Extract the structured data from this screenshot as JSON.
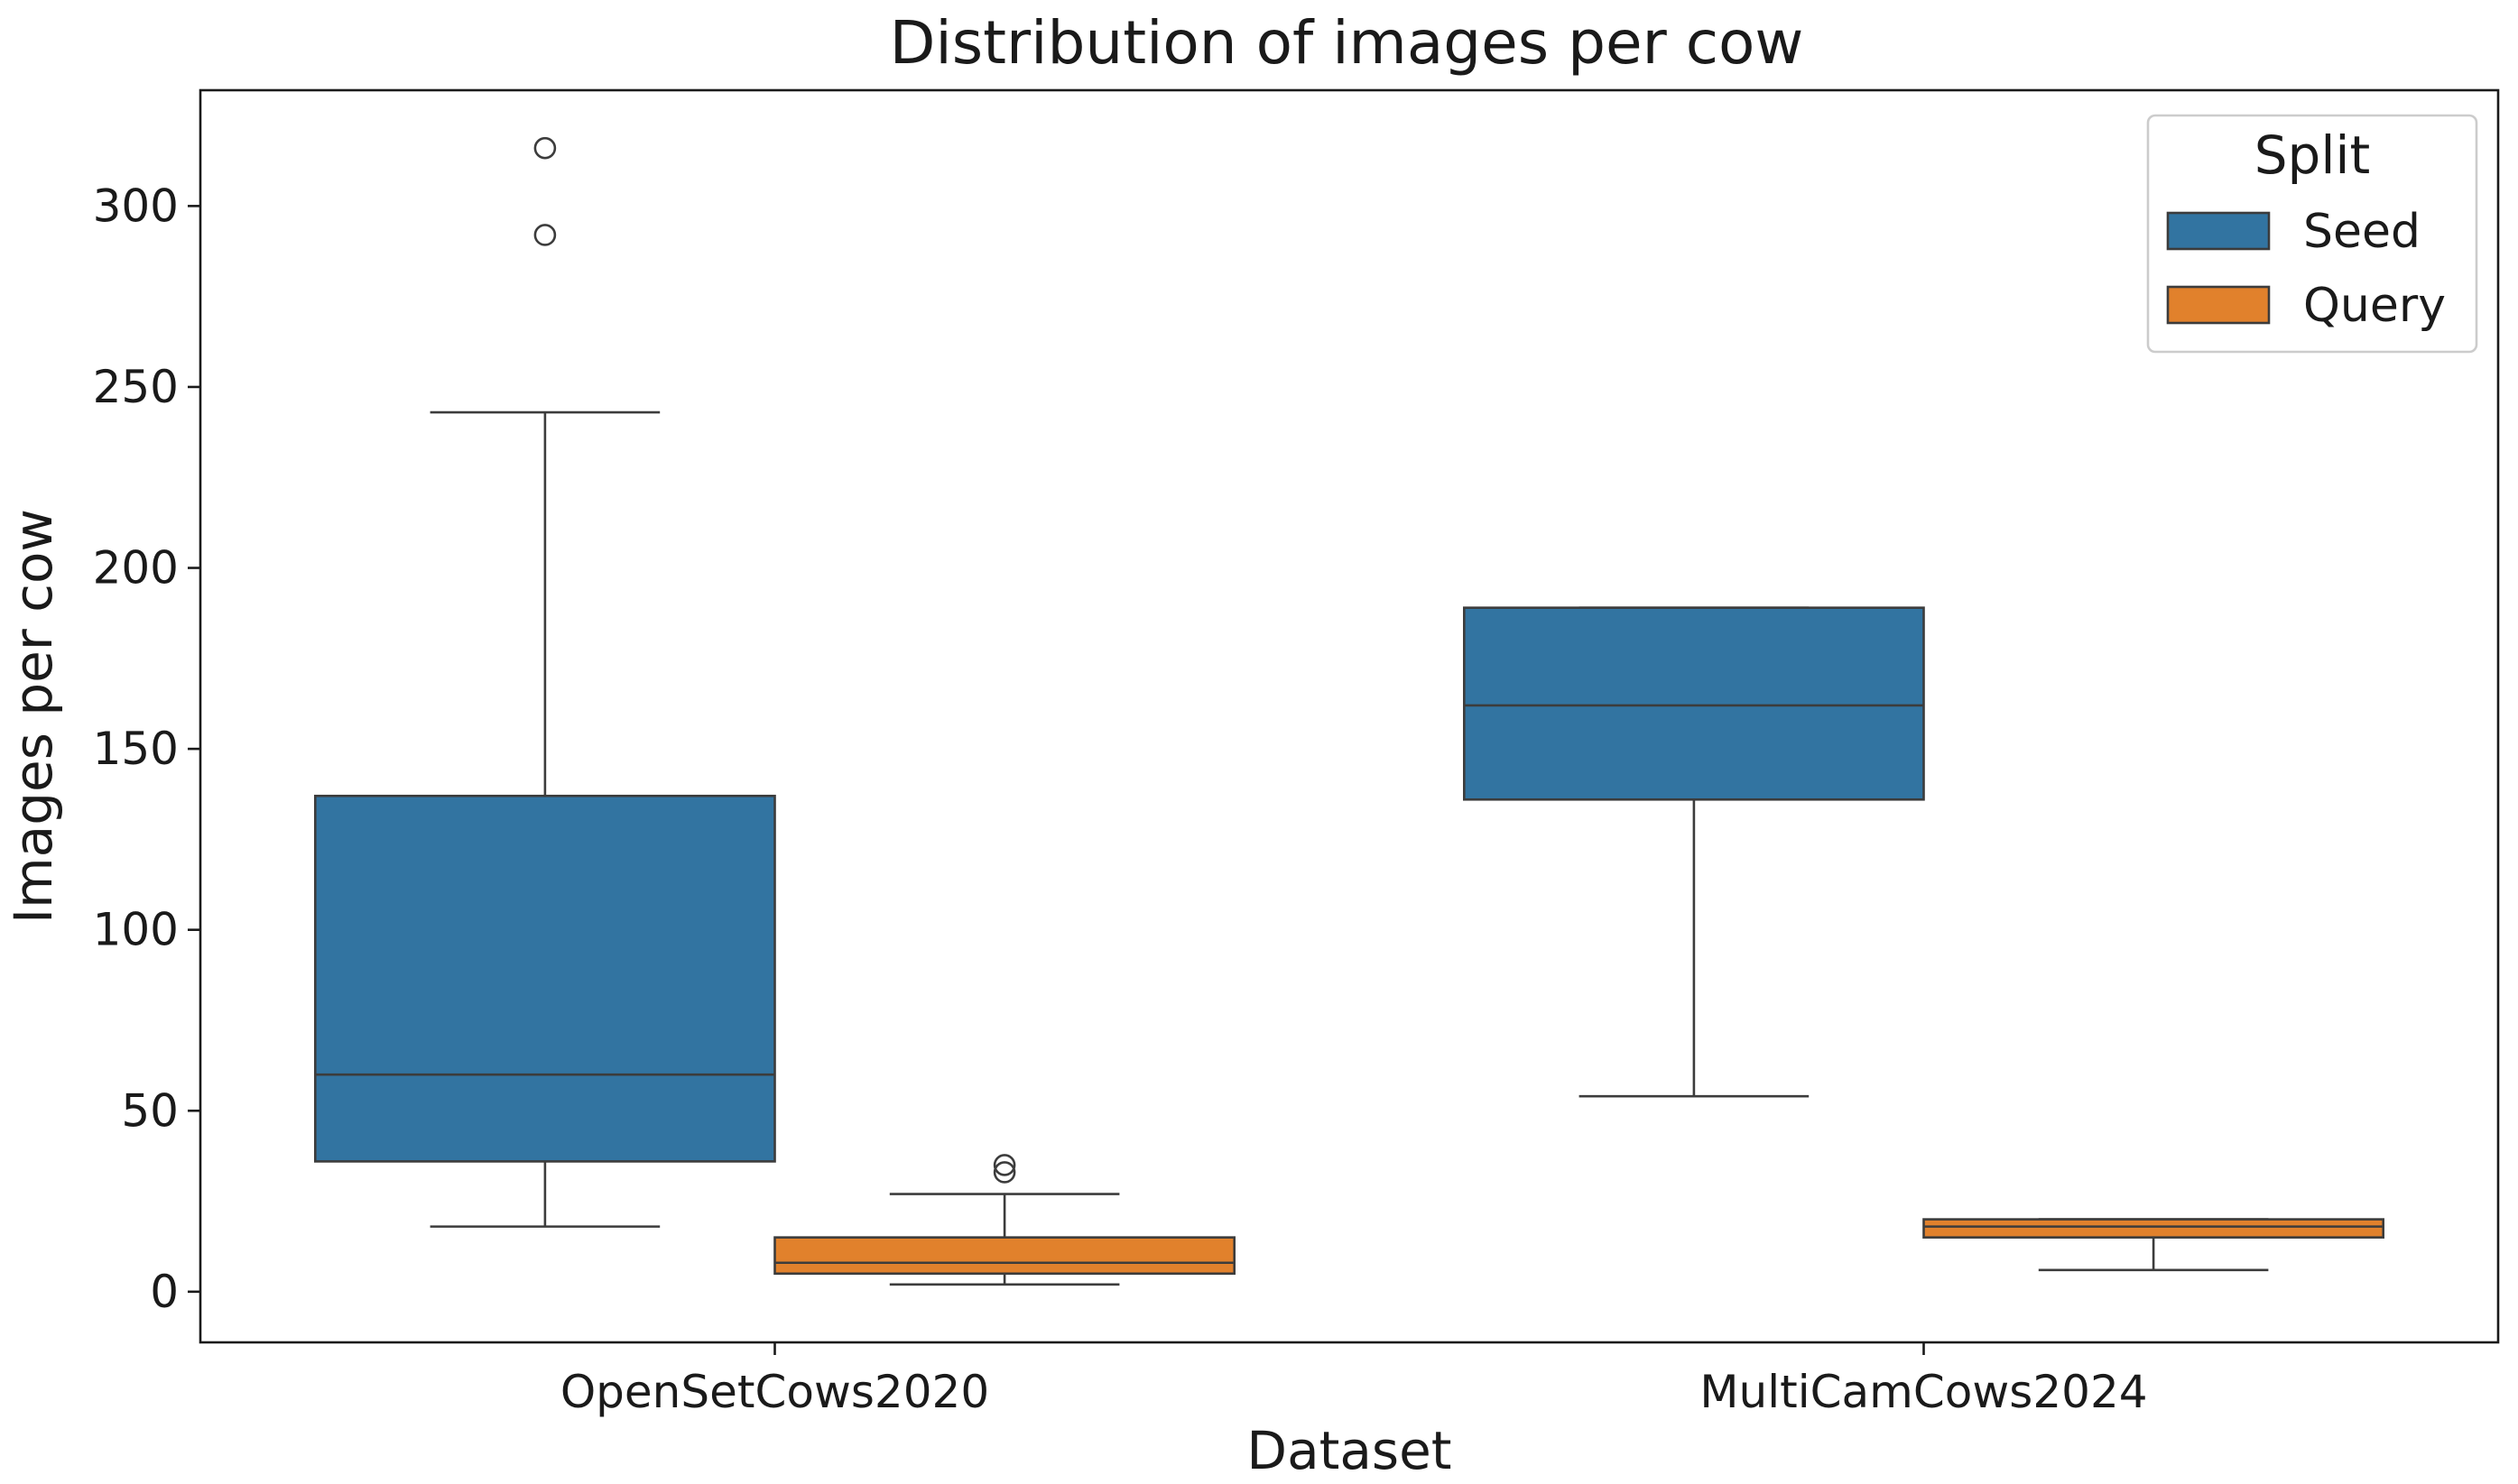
{
  "chart_data": {
    "type": "box",
    "title": "Distribution of images per cow",
    "xlabel": "Dataset",
    "ylabel": "Images per cow",
    "categories": [
      "OpenSetCows2020",
      "MultiCamCows2024"
    ],
    "ylim": [
      -14,
      332
    ],
    "yticks": [
      0,
      50,
      100,
      150,
      200,
      250,
      300
    ],
    "grid": false,
    "legend": {
      "title": "Split",
      "placement": "top-right",
      "entries": [
        "Seed",
        "Query"
      ]
    },
    "series": [
      {
        "name": "Seed",
        "color": "#3274a1",
        "boxes": [
          {
            "category": "OpenSetCows2020",
            "whisker_low": 18,
            "q1": 36,
            "median": 60,
            "q3": 137,
            "whisker_high": 243,
            "outliers": [
              292,
              316
            ]
          },
          {
            "category": "MultiCamCows2024",
            "whisker_low": 54,
            "q1": 136,
            "median": 162,
            "q3": 189,
            "whisker_high": 189,
            "outliers": []
          }
        ]
      },
      {
        "name": "Query",
        "color": "#e1812c",
        "boxes": [
          {
            "category": "OpenSetCows2020",
            "whisker_low": 2,
            "q1": 5,
            "median": 8,
            "q3": 15,
            "whisker_high": 27,
            "outliers": [
              33,
              35
            ]
          },
          {
            "category": "MultiCamCows2024",
            "whisker_low": 6,
            "q1": 15,
            "median": 18,
            "q3": 20,
            "whisker_high": 20,
            "outliers": []
          }
        ]
      }
    ]
  }
}
